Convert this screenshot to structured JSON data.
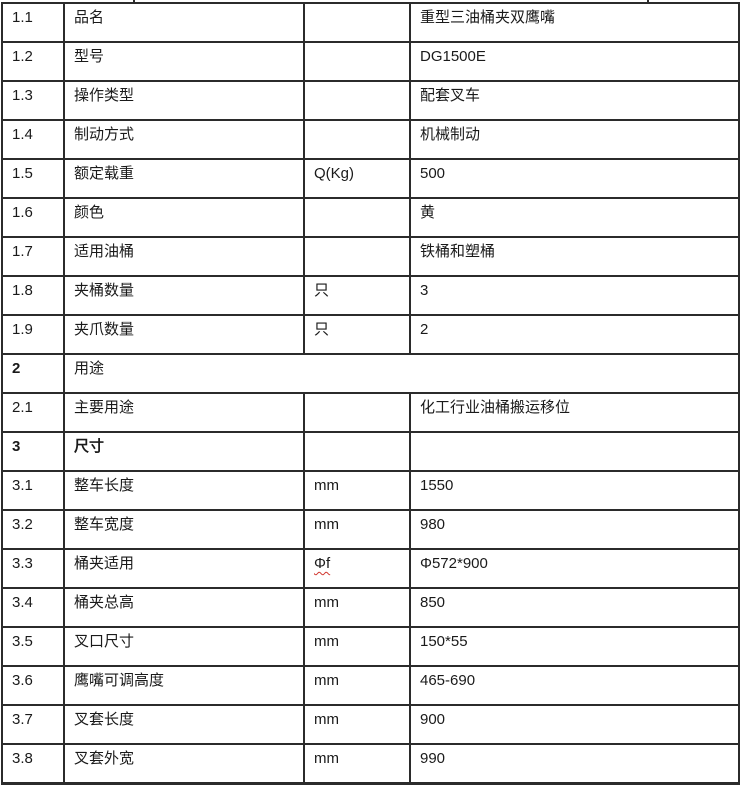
{
  "table": {
    "description": "product specification table",
    "border_color": "#2b2b2b",
    "spellcheck_underline_color": "#d0342c",
    "columns": [
      "index",
      "label",
      "unit",
      "value"
    ],
    "rows": [
      {
        "no": "1.1",
        "label": "品名",
        "unit": "",
        "value": "重型三油桶夹双鹰嘴"
      },
      {
        "no": "1.2",
        "label": "型号",
        "unit": "",
        "value": "DG1500E"
      },
      {
        "no": "1.3",
        "label": "操作类型",
        "unit": "",
        "value": "配套叉车"
      },
      {
        "no": "1.4",
        "label": "制动方式",
        "unit": "",
        "value": "机械制动"
      },
      {
        "no": "1.5",
        "label": "额定载重",
        "unit": "Q(Kg)",
        "value": "500"
      },
      {
        "no": "1.6",
        "label": "颜色",
        "unit": "",
        "value": "黄"
      },
      {
        "no": "1.7",
        "label": "适用油桶",
        "unit": "",
        "value": "铁桶和塑桶"
      },
      {
        "no": "1.8",
        "label": "夹桶数量",
        "unit": "只",
        "value": "3"
      },
      {
        "no": "1.9",
        "label": "夹爪数量",
        "unit": "只",
        "value": "2"
      },
      {
        "no": "2",
        "label": "用途",
        "section": true,
        "merged": true
      },
      {
        "no": "2.1",
        "label": "主要用途",
        "unit": "",
        "value": "化工行业油桶搬运移位"
      },
      {
        "no": "3",
        "label": "尺寸",
        "section": true,
        "bold_label": true,
        "unit": "",
        "value": ""
      },
      {
        "no": "3.1",
        "label": "整车长度",
        "unit": "mm",
        "value": "1550"
      },
      {
        "no": "3.2",
        "label": "整车宽度",
        "unit": "mm",
        "value": "980"
      },
      {
        "no": "3.3",
        "label": "桶夹适用",
        "unit": "Φf",
        "unit_spellcheck": true,
        "value": "Φ572*900"
      },
      {
        "no": "3.4",
        "label": "桶夹总高",
        "unit": "mm",
        "value": "850"
      },
      {
        "no": "3.5",
        "label": "叉口尺寸",
        "unit": "mm",
        "value": "150*55"
      },
      {
        "no": "3.6",
        "label": "鹰嘴可调高度",
        "unit": "mm",
        "value": "465-690"
      },
      {
        "no": "3.7",
        "label": "叉套长度",
        "unit": "mm",
        "value": "900"
      },
      {
        "no": "3.8",
        "label": "叉套外宽",
        "unit": "mm",
        "value": "990"
      }
    ]
  }
}
